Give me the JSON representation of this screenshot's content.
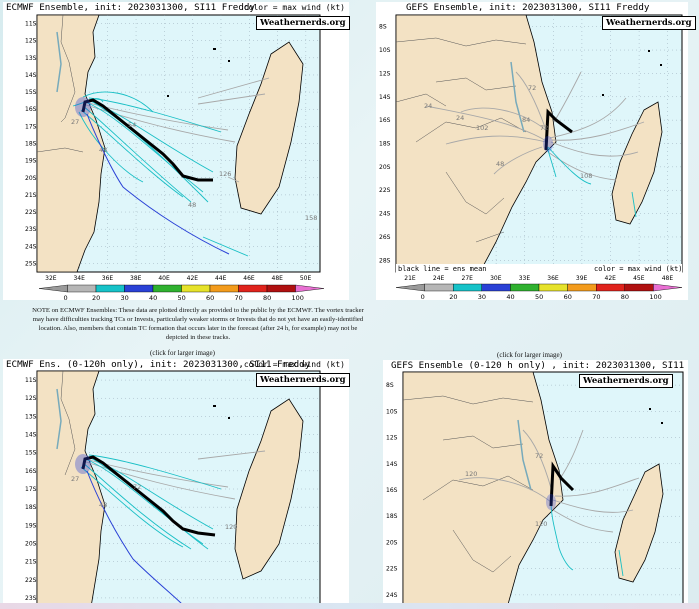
{
  "watermark": "Weathernerds.org",
  "color_note": "color = max wind (kt)",
  "panels": {
    "ecmwf_full": {
      "title": "ECMWF Ensemble, init: 2023031300, SI11 Freddy",
      "lat_labels": [
        "11S",
        "12S",
        "13S",
        "14S",
        "15S",
        "16S",
        "17S",
        "18S",
        "19S",
        "20S",
        "21S",
        "22S",
        "23S",
        "24S",
        "25S"
      ],
      "lon_labels": [
        "32E",
        "34E",
        "36E",
        "38E",
        "40E",
        "42E",
        "44E",
        "46E",
        "48E",
        "50E"
      ],
      "track_labels": [
        "27",
        "48",
        "54",
        "48",
        "126",
        "158"
      ]
    },
    "gefs_full": {
      "title": "GEFS Ensemble, init: 2023031300, SI11 Freddy",
      "lat_labels": [
        "8S",
        "10S",
        "12S",
        "14S",
        "16S",
        "18S",
        "20S",
        "22S",
        "24S",
        "26S",
        "28S"
      ],
      "lon_labels": [
        "21E",
        "24E",
        "27E",
        "30E",
        "33E",
        "36E",
        "39E",
        "42E",
        "45E",
        "48E"
      ],
      "track_labels": [
        "24",
        "24",
        "72",
        "102",
        "72",
        "108",
        "48",
        "84"
      ],
      "mean_note": "black line = ens mean"
    },
    "ecmwf_120": {
      "title": "ECMWF Ens. (0-120h only), init: 2023031300, SI11 Freddy",
      "lat_labels": [
        "11S",
        "12S",
        "13S",
        "14S",
        "15S",
        "16S",
        "17S",
        "18S",
        "19S",
        "20S",
        "21S",
        "22S",
        "23S"
      ],
      "track_labels": [
        "27",
        "48",
        "72",
        "120"
      ]
    },
    "gefs_120": {
      "title": "GEFS Ensemble (0-120 h only) , init: 2023031300, SI11 Freddy",
      "lat_labels": [
        "8S",
        "10S",
        "12S",
        "14S",
        "16S",
        "18S",
        "20S",
        "22S",
        "24S"
      ],
      "track_labels": [
        "72",
        "120",
        "120"
      ]
    }
  },
  "colorbar": {
    "ticks": [
      "0",
      "20",
      "30",
      "40",
      "50",
      "60",
      "70",
      "80",
      "100"
    ],
    "colors": [
      "#9a9a9a",
      "#b6b6b6",
      "#16c2c8",
      "#2a41d6",
      "#2fb12f",
      "#e6e22a",
      "#f39b1c",
      "#e0231c",
      "#b01010",
      "#e86fd2"
    ]
  },
  "note_text": "NOTE on ECMWF Ensembles: These data are plotted directly as provided to the public by the ECMWF. The vortex tracker may have difficulties tracking TCs or Invests, particularly weaker storms or Invests that do not yet have an easily-identified location. Also, members that contain TC formation that occurs later in the forecast (after 24 h, for example) may not be depicted in these tracks.",
  "click_text": "(click for larger image)"
}
